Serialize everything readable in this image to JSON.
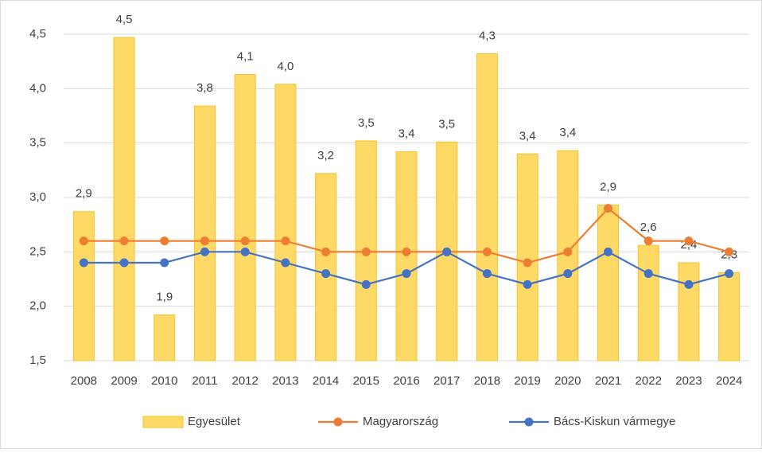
{
  "chart_data": {
    "type": "bar-line",
    "categories": [
      "2008",
      "2009",
      "2010",
      "2011",
      "2012",
      "2013",
      "2014",
      "2015",
      "2016",
      "2017",
      "2018",
      "2019",
      "2020",
      "2021",
      "2022",
      "2023",
      "2024"
    ],
    "series": [
      {
        "name": "Egyesület",
        "type": "bar",
        "color": "#ffd966",
        "border": "#f2c12e",
        "values": [
          2.87,
          4.47,
          1.92,
          3.84,
          4.13,
          4.04,
          3.22,
          3.52,
          3.42,
          3.51,
          4.32,
          3.4,
          3.43,
          2.93,
          2.56,
          2.4,
          2.31
        ],
        "value_labels": [
          "2,9",
          "4,5",
          "1,9",
          "3,8",
          "4,1",
          "4,0",
          "3,2",
          "3,5",
          "3,4",
          "3,5",
          "4,3",
          "3,4",
          "3,4",
          "2,9",
          "2,6",
          "2,4",
          "2,3"
        ]
      },
      {
        "name": "Magyarország",
        "type": "line",
        "color": "#ed7d31",
        "values": [
          2.6,
          2.6,
          2.6,
          2.6,
          2.6,
          2.6,
          2.5,
          2.5,
          2.5,
          2.5,
          2.5,
          2.4,
          2.5,
          2.9,
          2.6,
          2.6,
          2.5
        ]
      },
      {
        "name": "Bács-Kiskun vármegye",
        "type": "line",
        "color": "#4472c4",
        "values": [
          2.4,
          2.4,
          2.4,
          2.5,
          2.5,
          2.4,
          2.3,
          2.2,
          2.3,
          2.5,
          2.3,
          2.2,
          2.3,
          2.5,
          2.3,
          2.2,
          2.3
        ]
      }
    ],
    "ylim": [
      1.5,
      4.5
    ],
    "yticks": [
      {
        "value": 1.5,
        "label": "1,5"
      },
      {
        "value": 2,
        "label": "2,0"
      },
      {
        "value": 2.5,
        "label": "2,5"
      },
      {
        "value": 3,
        "label": "3,0"
      },
      {
        "value": 3.5,
        "label": "3,5"
      },
      {
        "value": 4,
        "label": "4,0"
      },
      {
        "value": 4.5,
        "label": "4,5"
      }
    ],
    "grid": true,
    "legend": "bottom"
  }
}
